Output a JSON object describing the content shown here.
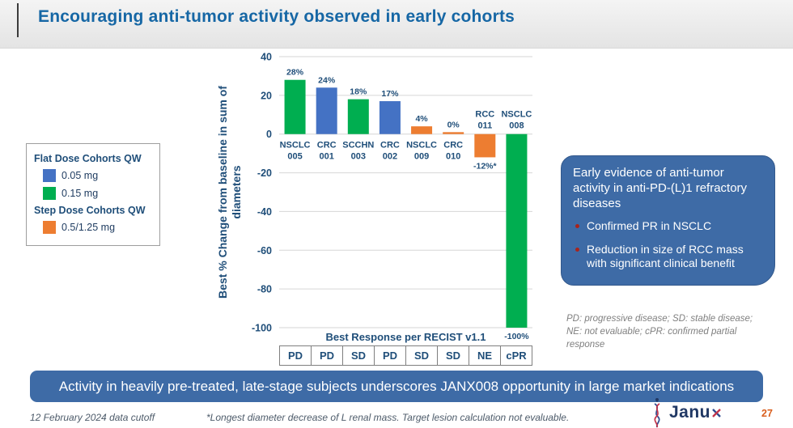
{
  "slide": {
    "title": "Encouraging anti-tumor activity observed in early cohorts",
    "page_number": "27"
  },
  "legend": {
    "groups": [
      {
        "title": "Flat Dose Cohorts QW",
        "items": [
          {
            "label": "0.05 mg",
            "color": "#4472C4"
          },
          {
            "label": "0.15 mg",
            "color": "#00AE50"
          }
        ]
      },
      {
        "title": "Step Dose Cohorts QW",
        "items": [
          {
            "label": "0.5/1.25 mg",
            "color": "#ED7D31"
          }
        ]
      }
    ]
  },
  "chart_data": {
    "type": "bar",
    "title": "",
    "xlabel": "",
    "ylabel": "Best % Change from baseline in sum of diameters",
    "ylabel_lines": [
      "Best % Change from baseline in sum of",
      "diameters"
    ],
    "ylim": [
      -100,
      40
    ],
    "yticks": [
      40,
      20,
      0,
      -20,
      -40,
      -60,
      -80,
      -100
    ],
    "grid": true,
    "legend_position": "left",
    "categories": [
      "NSCLC 005",
      "CRC 001",
      "SCCHN 003",
      "CRC 002",
      "NSCLC 009",
      "CRC 010",
      "RCC 011",
      "NSCLC 008"
    ],
    "bars": [
      {
        "cohort": "NSCLC 005",
        "label": "28%",
        "value": 28,
        "bar_value": 28,
        "color": "#00AE50",
        "response": "PD"
      },
      {
        "cohort": "CRC 001",
        "label": "24%",
        "value": 24,
        "bar_value": 24,
        "color": "#4472C4",
        "response": "PD"
      },
      {
        "cohort": "SCCHN 003",
        "label": "18%",
        "value": 18,
        "bar_value": 18,
        "color": "#00AE50",
        "response": "SD"
      },
      {
        "cohort": "CRC 002",
        "label": "17%",
        "value": 17,
        "bar_value": 17,
        "color": "#4472C4",
        "response": "PD"
      },
      {
        "cohort": "NSCLC 009",
        "label": "4%",
        "value": 4,
        "bar_value": 4,
        "color": "#ED7D31",
        "response": "SD"
      },
      {
        "cohort": "CRC 010",
        "label": "0%",
        "value": 0,
        "bar_value": 1,
        "color": "#ED7D31",
        "response": "SD"
      },
      {
        "cohort": "RCC 011",
        "label": "-12%*",
        "value": -12,
        "bar_value": -12,
        "color": "#ED7D31",
        "response": "NE"
      },
      {
        "cohort": "NSCLC 008",
        "label": "-100%",
        "value": -100,
        "bar_value": -100,
        "color": "#00AE50",
        "response": "cPR"
      }
    ],
    "palette": {
      "blue": "#4472C4",
      "green": "#00AE50",
      "orange": "#ED7D31"
    }
  },
  "response_table": {
    "title": "Best Response per RECIST v1.1",
    "cells": [
      "PD",
      "PD",
      "SD",
      "PD",
      "SD",
      "SD",
      "NE",
      "cPR"
    ]
  },
  "callout": {
    "heading": "Early evidence of anti-tumor activity in anti-PD-(L)1 refractory diseases",
    "bullets": [
      "Confirmed PR in NSCLC",
      "Reduction in size of RCC mass with significant clinical benefit"
    ]
  },
  "abbrev_note": "PD: progressive disease; SD: stable disease; NE: not evaluable; cPR: confirmed partial response",
  "banner": "Activity in heavily pre-treated, late-stage subjects underscores JANX008 opportunity in large market indications",
  "footer": {
    "left": "12 February 2024 data cutoff",
    "note": "*Longest diameter decrease of L renal mass.  Target lesion calculation not evaluable.",
    "logo_text": "Janux",
    "logo_icon": "dna-helix-icon"
  }
}
